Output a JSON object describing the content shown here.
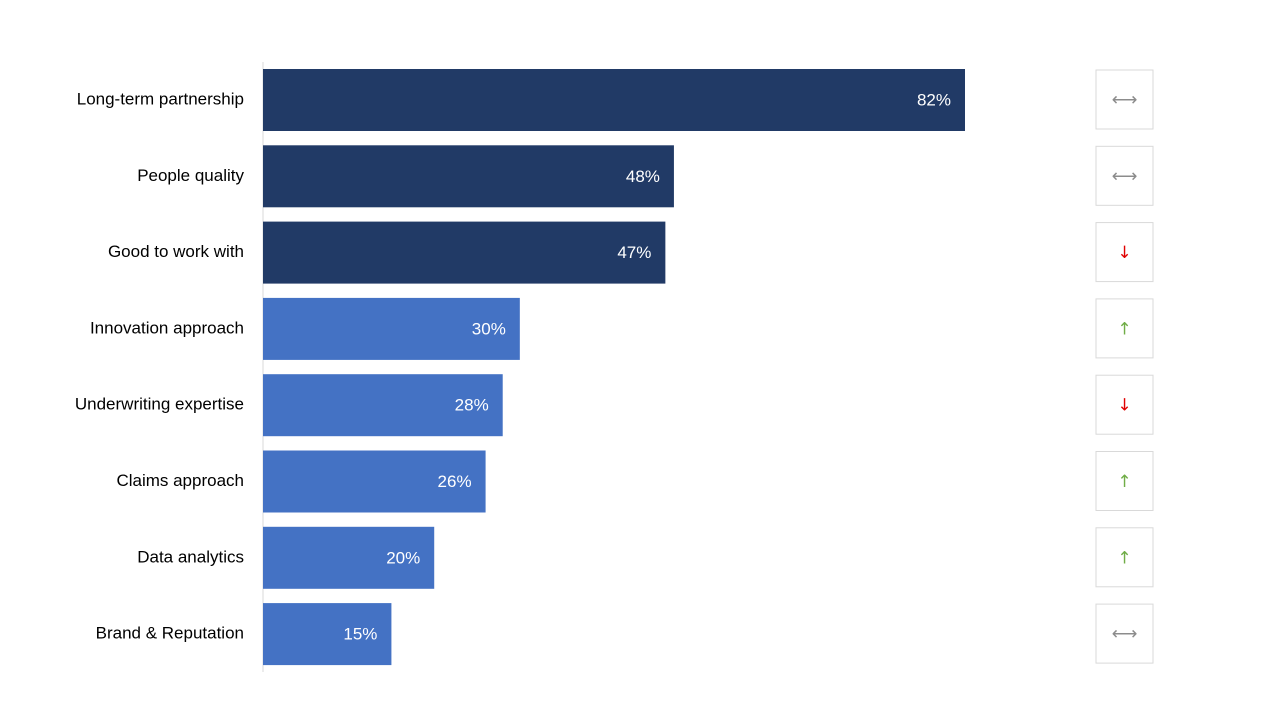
{
  "chart_data": {
    "type": "bar",
    "orientation": "horizontal",
    "categories": [
      "Long-term partnership",
      "People quality",
      "Good to work with",
      "Innovation approach",
      "Underwriting expertise",
      "Claims approach",
      "Data analytics",
      "Brand & Reputation"
    ],
    "values": [
      82,
      48,
      47,
      30,
      28,
      26,
      20,
      15
    ],
    "value_labels": [
      "82%",
      "48%",
      "47%",
      "30%",
      "28%",
      "26%",
      "20%",
      "15%"
    ],
    "bar_colors": [
      "#213a66",
      "#213a66",
      "#213a66",
      "#4472c4",
      "#4472c4",
      "#4472c4",
      "#4472c4",
      "#4472c4"
    ],
    "trends": [
      "flat",
      "flat",
      "down",
      "up",
      "down",
      "up",
      "up",
      "flat"
    ],
    "trend_icons": {
      "flat": {
        "glyph": "⟷",
        "icon": "left-right-arrow-icon",
        "color": "#8c8c8c"
      },
      "up": {
        "glyph": "↑",
        "icon": "up-arrow-icon",
        "color": "#70ad47"
      },
      "down": {
        "glyph": "↓",
        "icon": "down-arrow-icon",
        "color": "#e00000"
      }
    },
    "xlim": [
      0,
      100
    ],
    "title": "",
    "xlabel": "",
    "ylabel": "",
    "grid": false,
    "legend": "none"
  }
}
